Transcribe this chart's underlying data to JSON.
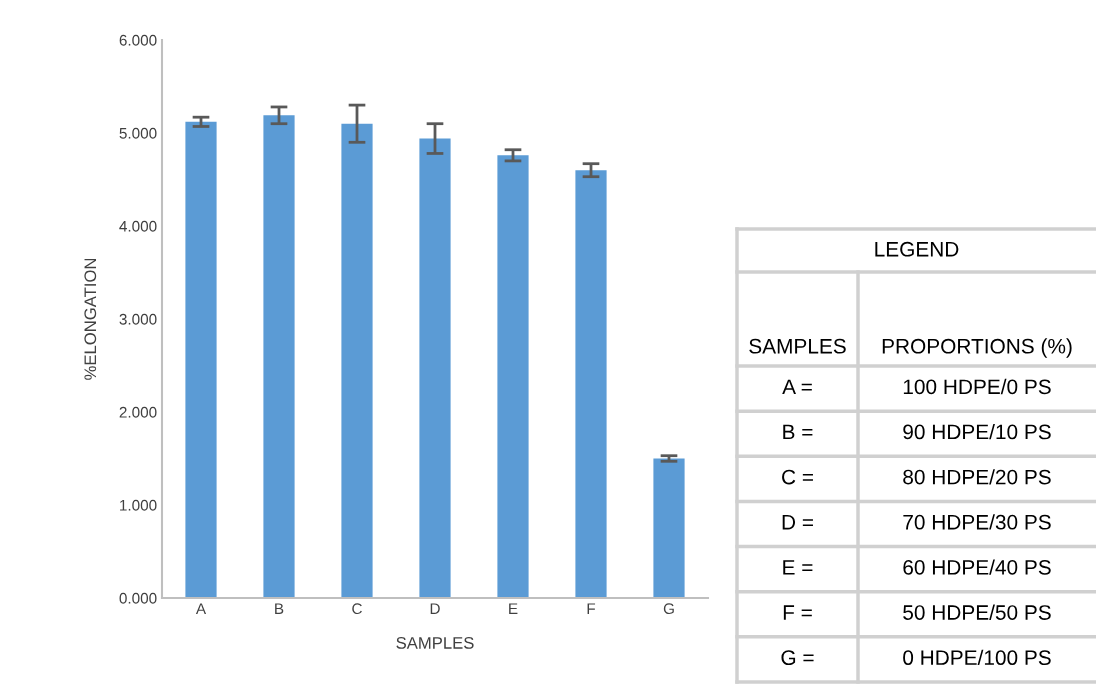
{
  "chart_data": {
    "type": "bar",
    "xlabel": "SAMPLES",
    "ylabel": "%ELONGATION",
    "categories": [
      "A",
      "B",
      "C",
      "D",
      "E",
      "F",
      "G"
    ],
    "values": [
      5.12,
      5.19,
      5.1,
      4.94,
      4.76,
      4.6,
      1.5
    ],
    "errors": [
      0.05,
      0.09,
      0.2,
      0.16,
      0.06,
      0.07,
      0.03
    ],
    "color": "#5b9bd5",
    "ylim": [
      0,
      6
    ],
    "yticks": [
      {
        "value": 0,
        "label": "0.000"
      },
      {
        "value": 1,
        "label": "1.000"
      },
      {
        "value": 2,
        "label": "2.000"
      },
      {
        "value": 3,
        "label": "3.000"
      },
      {
        "value": 4,
        "label": "4.000"
      },
      {
        "value": 5,
        "label": "5.000"
      },
      {
        "value": 6,
        "label": "6.000"
      }
    ],
    "grid": false,
    "legend": false,
    "annotations": [
      "LEGEND",
      "SAMPLES",
      "PROPORTIONS (%)",
      "A =",
      "100 HDPE/0 PS",
      "B =",
      "90 HDPE/10 PS",
      "C =",
      "80 HDPE/20 PS",
      "D =",
      "70 HDPE/30 PS",
      "E =",
      "60 HDPE/40 PS",
      "F =",
      "50 HDPE/50 PS",
      "G =",
      "0 HDPE/100 PS"
    ]
  }
}
